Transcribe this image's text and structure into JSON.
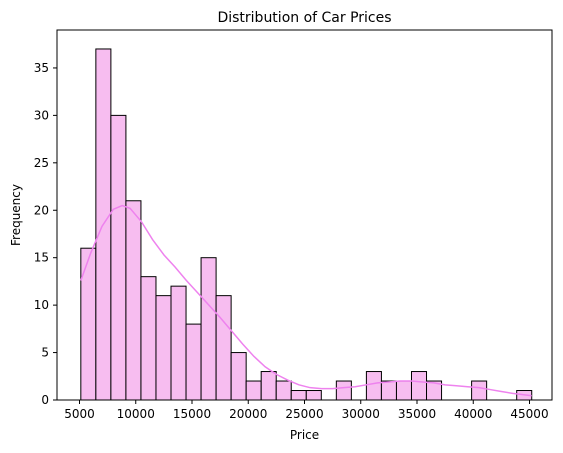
{
  "chart_data": {
    "type": "bar",
    "title": "Distribution of Car Prices",
    "xlabel": "Price",
    "ylabel": "Frequency",
    "xlim": [
      3000,
      47000
    ],
    "ylim": [
      0,
      39
    ],
    "xticks": [
      5000,
      10000,
      15000,
      20000,
      25000,
      30000,
      35000,
      40000,
      45000
    ],
    "yticks": [
      0,
      5,
      10,
      15,
      20,
      25,
      30,
      35
    ],
    "grid": false,
    "bins": [
      {
        "x0": 5118,
        "x1": 6454,
        "count": 16
      },
      {
        "x0": 6454,
        "x1": 7790,
        "count": 37
      },
      {
        "x0": 7790,
        "x1": 9126,
        "count": 30
      },
      {
        "x0": 9126,
        "x1": 10462,
        "count": 21
      },
      {
        "x0": 10462,
        "x1": 11798,
        "count": 13
      },
      {
        "x0": 11798,
        "x1": 13134,
        "count": 11
      },
      {
        "x0": 13134,
        "x1": 14470,
        "count": 12
      },
      {
        "x0": 14470,
        "x1": 15806,
        "count": 8
      },
      {
        "x0": 15806,
        "x1": 17142,
        "count": 15
      },
      {
        "x0": 17142,
        "x1": 18478,
        "count": 11
      },
      {
        "x0": 18478,
        "x1": 19814,
        "count": 5
      },
      {
        "x0": 19814,
        "x1": 21150,
        "count": 2
      },
      {
        "x0": 21150,
        "x1": 22486,
        "count": 3
      },
      {
        "x0": 22486,
        "x1": 23822,
        "count": 2
      },
      {
        "x0": 23822,
        "x1": 25158,
        "count": 1
      },
      {
        "x0": 25158,
        "x1": 26494,
        "count": 1
      },
      {
        "x0": 26494,
        "x1": 27830,
        "count": 0
      },
      {
        "x0": 27830,
        "x1": 29166,
        "count": 2
      },
      {
        "x0": 29166,
        "x1": 30502,
        "count": 0
      },
      {
        "x0": 30502,
        "x1": 31838,
        "count": 3
      },
      {
        "x0": 31838,
        "x1": 33174,
        "count": 2
      },
      {
        "x0": 33174,
        "x1": 34510,
        "count": 2
      },
      {
        "x0": 34510,
        "x1": 35846,
        "count": 3
      },
      {
        "x0": 35846,
        "x1": 37182,
        "count": 2
      },
      {
        "x0": 37182,
        "x1": 38518,
        "count": 0
      },
      {
        "x0": 38518,
        "x1": 39854,
        "count": 0
      },
      {
        "x0": 39854,
        "x1": 41190,
        "count": 2
      },
      {
        "x0": 41190,
        "x1": 42526,
        "count": 0
      },
      {
        "x0": 42526,
        "x1": 43862,
        "count": 0
      },
      {
        "x0": 43862,
        "x1": 45198,
        "count": 1
      }
    ],
    "kde": {
      "x": [
        5118,
        6000,
        7000,
        8000,
        8800,
        9500,
        10500,
        11500,
        12500,
        13500,
        14500,
        15500,
        16500,
        17500,
        18500,
        19500,
        20500,
        21500,
        22500,
        23500,
        24500,
        25500,
        26500,
        27500,
        28500,
        29500,
        30500,
        31500,
        32500,
        33500,
        34500,
        35500,
        36500,
        37500,
        38500,
        39500,
        40500,
        41500,
        42500,
        43500,
        44500,
        45198
      ],
      "y": [
        12.6,
        15.5,
        18.3,
        20.1,
        20.5,
        20.2,
        18.8,
        16.9,
        15.3,
        14.0,
        12.6,
        11.3,
        10.0,
        8.7,
        7.3,
        5.9,
        4.6,
        3.5,
        2.7,
        2.1,
        1.6,
        1.3,
        1.2,
        1.2,
        1.3,
        1.4,
        1.6,
        1.8,
        1.9,
        2.0,
        2.0,
        1.9,
        1.8,
        1.6,
        1.5,
        1.4,
        1.3,
        1.1,
        0.9,
        0.7,
        0.55,
        0.45
      ]
    },
    "colors": {
      "bar_fill": "#f7bdf0",
      "bar_edge": "#000000",
      "kde_line": "#ee82ee"
    }
  }
}
